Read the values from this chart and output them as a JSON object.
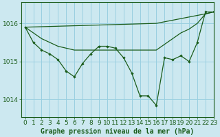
{
  "title": "Graphe pression niveau de la mer (hPa)",
  "background_color": "#cce8f0",
  "grid_color": "#99cfe0",
  "line_color": "#1a5c1a",
  "marker_color": "#1a5c1a",
  "xlim": [
    -0.5,
    23
  ],
  "ylim": [
    1013.55,
    1016.55
  ],
  "yticks": [
    1014,
    1015,
    1016
  ],
  "xticks": [
    0,
    1,
    2,
    3,
    4,
    5,
    6,
    7,
    8,
    9,
    10,
    11,
    12,
    13,
    14,
    15,
    16,
    17,
    18,
    19,
    20,
    21,
    22,
    23
  ],
  "series_main": [
    1015.9,
    1015.5,
    1015.3,
    1015.2,
    1015.05,
    1014.75,
    1014.6,
    1014.95,
    1015.2,
    1015.4,
    1015.4,
    1015.35,
    1015.1,
    1014.7,
    1014.1,
    1014.1,
    1013.85,
    1015.1,
    1015.05,
    1015.15,
    1015.0,
    1015.5,
    1016.3,
    1016.3
  ],
  "series_flat": [
    1015.9,
    1015.75,
    1015.6,
    1015.5,
    1015.4,
    1015.35,
    1015.3,
    1015.3,
    1015.3,
    1015.3,
    1015.3,
    1015.3,
    1015.3,
    1015.3,
    1015.3,
    1015.3,
    1015.3,
    1015.45,
    1015.6,
    1015.75,
    1015.85,
    1016.0,
    1016.25,
    1016.3
  ],
  "xlabel_fontsize": 6.5,
  "ylabel_fontsize": 6.5,
  "title_fontsize": 7.0
}
